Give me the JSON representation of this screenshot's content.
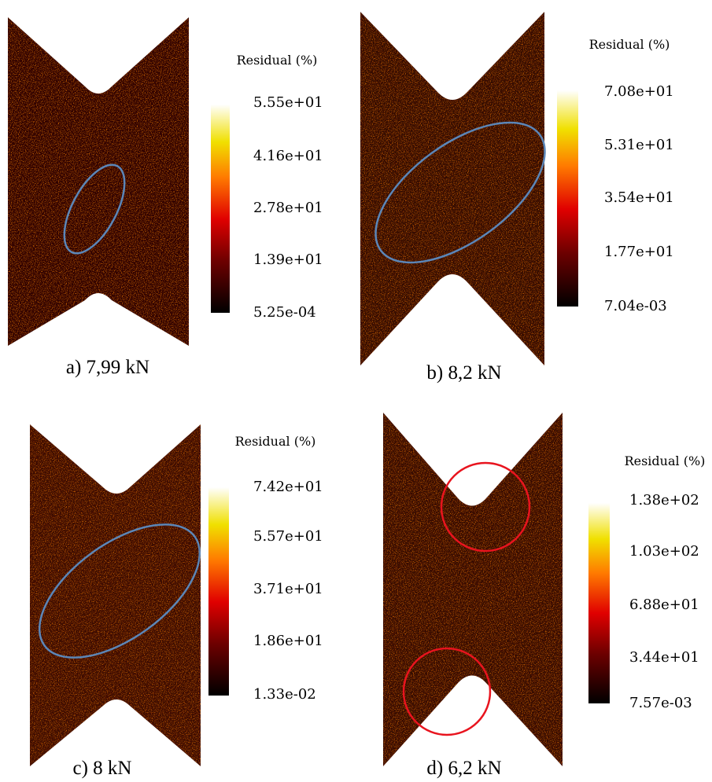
{
  "panels": [
    {
      "caption": "a) 7,99 kN",
      "colorbar": {
        "title": "Residual (%)",
        "labels": [
          "5.55e+01",
          "4.16e+01",
          "2.78e+01",
          "1.39e+01",
          "5.25e-04"
        ]
      }
    },
    {
      "caption": "b) 8,2 kN",
      "colorbar": {
        "title": "Residual (%)",
        "labels": [
          "7.08e+01",
          "5.31e+01",
          "3.54e+01",
          "1.77e+01",
          "7.04e-03"
        ]
      }
    },
    {
      "caption": "c) 8 kN",
      "colorbar": {
        "title": "Residual (%)",
        "labels": [
          "7.42e+01",
          "5.57e+01",
          "3.71e+01",
          "1.86e+01",
          "1.33e-02"
        ]
      }
    },
    {
      "caption": "d) 6,2 kN",
      "colorbar": {
        "title": "Residual (%)",
        "labels": [
          "1.38e+02",
          "1.03e+02",
          "6.88e+01",
          "3.44e+01",
          "7.57e-03"
        ]
      }
    }
  ]
}
